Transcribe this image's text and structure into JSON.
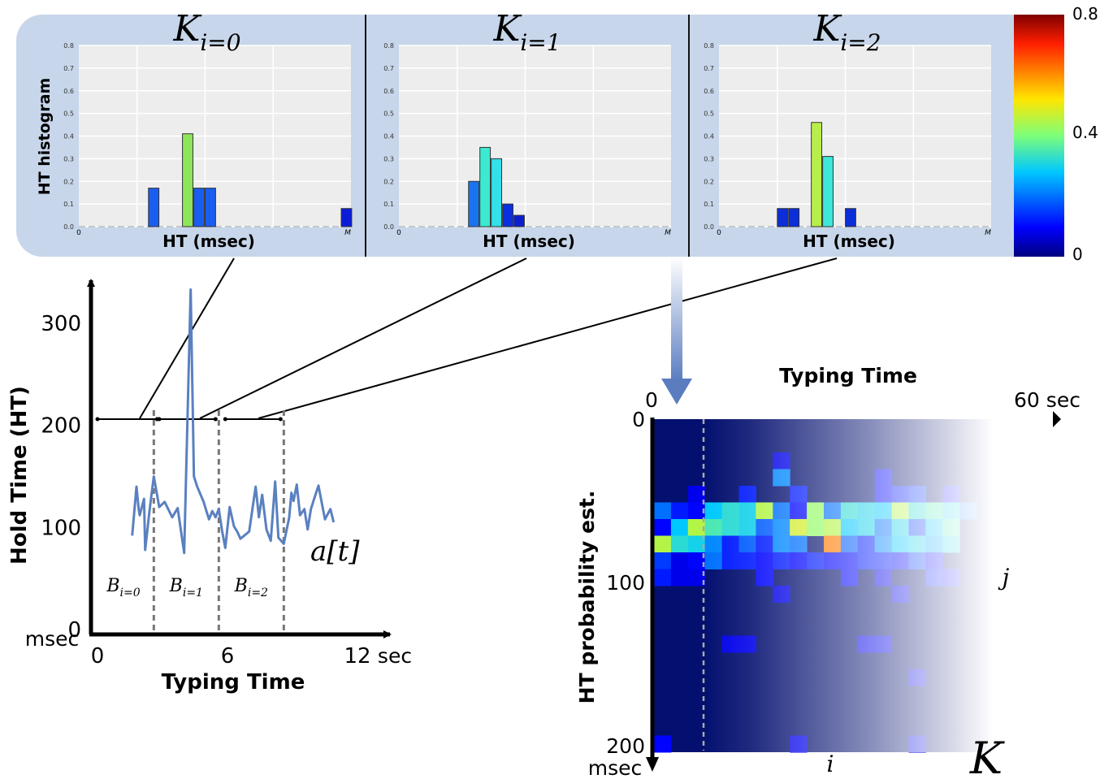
{
  "colors": {
    "panel_bg": "#c7d6ea",
    "plot_bg": "#ededed",
    "series_line": "#5a80c0",
    "heatmap_base": "#04106f",
    "arrow_blue": "#5b7dc0"
  },
  "histogram_panels": {
    "ylabel": "HT histogram",
    "xlabel": "HT (msec)",
    "x_start": "0",
    "x_end": "M",
    "y_ticks": [
      "0.0",
      "0.1",
      "0.2",
      "0.3",
      "0.4",
      "0.5",
      "0.6",
      "0.7",
      "0.8"
    ],
    "titles": [
      {
        "base": "K",
        "sub": "i=0"
      },
      {
        "base": "K",
        "sub": "i=1"
      },
      {
        "base": "K",
        "sub": "i=2"
      }
    ]
  },
  "colorbar": {
    "top_label": "0.8",
    "mid_label": "0.4",
    "bottom_label": "0"
  },
  "timeseries": {
    "ylabel": "Hold Time (HT)",
    "xlabel": "Typing Time",
    "y_unit": "msec",
    "x_unit": "sec",
    "y_ticks": [
      {
        "v": 0,
        "label": "0"
      },
      {
        "v": 100,
        "label": "100"
      },
      {
        "v": 200,
        "label": "200"
      },
      {
        "v": 300,
        "label": "300"
      }
    ],
    "x_ticks": [
      {
        "v": 0,
        "label": "0"
      },
      {
        "v": 6,
        "label": "6"
      },
      {
        "v": 12,
        "label": "12"
      }
    ],
    "signal_label": "a[t]",
    "block_labels": [
      {
        "base": "B",
        "sub": "i=0"
      },
      {
        "base": "B",
        "sub": "i=1"
      },
      {
        "base": "B",
        "sub": "i=2"
      }
    ]
  },
  "heatmap": {
    "top_title": "Typing Time",
    "x_start": "0",
    "x_end": "60 sec",
    "ylabel": "HT probability est.",
    "y_ticks": [
      {
        "v": 0,
        "label": "0"
      },
      {
        "v": 100,
        "label": "100"
      },
      {
        "v": 200,
        "label": "200"
      }
    ],
    "y_unit": "msec",
    "col_index": "i",
    "row_index": "j",
    "matrix_label": "K"
  },
  "chart_data": [
    {
      "type": "bar",
      "title": "K_{i=0}",
      "xlabel": "HT (msec)",
      "ylabel": "HT histogram",
      "ylim": [
        0,
        0.8
      ],
      "bins": 24,
      "bars": [
        {
          "bin": 6,
          "value": 0.17,
          "color": "#1a5ef0"
        },
        {
          "bin": 9,
          "value": 0.41,
          "color": "#8de65a"
        },
        {
          "bin": 10,
          "value": 0.17,
          "color": "#1a5ef0"
        },
        {
          "bin": 11,
          "value": 0.17,
          "color": "#1a5ef0"
        },
        {
          "bin": 23,
          "value": 0.08,
          "color": "#0a1cd8"
        }
      ]
    },
    {
      "type": "bar",
      "title": "K_{i=1}",
      "xlabel": "HT (msec)",
      "ylim": [
        0,
        0.8
      ],
      "bins": 24,
      "bars": [
        {
          "bin": 6,
          "value": 0.2,
          "color": "#1a74ef"
        },
        {
          "bin": 7,
          "value": 0.35,
          "color": "#3bead0"
        },
        {
          "bin": 8,
          "value": 0.3,
          "color": "#33e1ea"
        },
        {
          "bin": 9,
          "value": 0.1,
          "color": "#0b2fdd"
        },
        {
          "bin": 10,
          "value": 0.05,
          "color": "#0b1fcf"
        }
      ]
    },
    {
      "type": "bar",
      "title": "K_{i=2}",
      "xlabel": "HT (msec)",
      "ylim": [
        0,
        0.8
      ],
      "bins": 24,
      "bars": [
        {
          "bin": 5,
          "value": 0.08,
          "color": "#0b2ed8"
        },
        {
          "bin": 6,
          "value": 0.08,
          "color": "#0b2ed8"
        },
        {
          "bin": 8,
          "value": 0.46,
          "color": "#b8ee4a"
        },
        {
          "bin": 9,
          "value": 0.31,
          "color": "#3de8d8"
        },
        {
          "bin": 11,
          "value": 0.08,
          "color": "#0b2ed8"
        }
      ]
    },
    {
      "type": "line",
      "name": "a[t]",
      "xlabel": "Typing Time",
      "ylabel": "Hold Time (HT)",
      "xlim": [
        0,
        12
      ],
      "ylim": [
        0,
        330
      ],
      "x": [
        1.6,
        1.8,
        1.9,
        1.95,
        2.15,
        2.2,
        2.4,
        2.6,
        2.85,
        3.1,
        3.45,
        3.7,
        4.0,
        4.3,
        4.45,
        4.6,
        4.9,
        5.0,
        5.15,
        5.3,
        5.45,
        5.6,
        5.75,
        5.9,
        6.1,
        6.3,
        6.45,
        6.6,
        7.0,
        7.3,
        7.45,
        7.6,
        7.8,
        8.0,
        8.2,
        8.35,
        8.6,
        8.85,
        8.95,
        9.05,
        9.2,
        9.35,
        9.55,
        9.7,
        9.85,
        10.0,
        10.2,
        10.5,
        10.75,
        10.9
      ],
      "y": [
        92,
        140,
        118,
        112,
        128,
        78,
        116,
        150,
        120,
        125,
        110,
        119,
        75,
        333,
        150,
        140,
        125,
        118,
        108,
        116,
        110,
        118,
        97,
        80,
        120,
        101,
        96,
        89,
        96,
        140,
        110,
        132,
        98,
        87,
        145,
        90,
        84,
        110,
        134,
        126,
        142,
        112,
        118,
        98,
        118,
        128,
        141,
        108,
        118,
        105
      ]
    },
    {
      "type": "heatmap",
      "xlabel": "Typing Time",
      "ylabel": "HT probability est.",
      "xlim": [
        0,
        60
      ],
      "ylim_msec": [
        0,
        200
      ],
      "rows": 20,
      "cols": 20,
      "background_value": 0.0,
      "cells": [
        {
          "r": 2,
          "c": 7,
          "v": 0.08
        },
        {
          "r": 3,
          "c": 7,
          "v": 0.22
        },
        {
          "r": 3,
          "c": 13,
          "v": 0.1
        },
        {
          "r": 4,
          "c": 2,
          "v": 0.08
        },
        {
          "r": 4,
          "c": 5,
          "v": 0.12
        },
        {
          "r": 4,
          "c": 8,
          "v": 0.12
        },
        {
          "r": 4,
          "c": 13,
          "v": 0.1
        },
        {
          "r": 4,
          "c": 14,
          "v": 0.12
        },
        {
          "r": 4,
          "c": 15,
          "v": 0.14
        },
        {
          "r": 4,
          "c": 17,
          "v": 0.1
        },
        {
          "r": 5,
          "c": 0,
          "v": 0.2
        },
        {
          "r": 5,
          "c": 1,
          "v": 0.12
        },
        {
          "r": 5,
          "c": 2,
          "v": 0.1
        },
        {
          "r": 5,
          "c": 3,
          "v": 0.28
        },
        {
          "r": 5,
          "c": 4,
          "v": 0.32
        },
        {
          "r": 5,
          "c": 5,
          "v": 0.3
        },
        {
          "r": 5,
          "c": 6,
          "v": 0.45
        },
        {
          "r": 5,
          "c": 7,
          "v": 0.2
        },
        {
          "r": 5,
          "c": 8,
          "v": 0.1
        },
        {
          "r": 5,
          "c": 9,
          "v": 0.42
        },
        {
          "r": 5,
          "c": 10,
          "v": 0.2
        },
        {
          "r": 5,
          "c": 11,
          "v": 0.32
        },
        {
          "r": 5,
          "c": 12,
          "v": 0.3
        },
        {
          "r": 5,
          "c": 13,
          "v": 0.28
        },
        {
          "r": 5,
          "c": 14,
          "v": 0.45
        },
        {
          "r": 5,
          "c": 15,
          "v": 0.32
        },
        {
          "r": 5,
          "c": 16,
          "v": 0.35
        },
        {
          "r": 5,
          "c": 17,
          "v": 0.3
        },
        {
          "r": 5,
          "c": 18,
          "v": 0.2
        },
        {
          "r": 6,
          "c": 0,
          "v": 0.1
        },
        {
          "r": 6,
          "c": 1,
          "v": 0.28
        },
        {
          "r": 6,
          "c": 2,
          "v": 0.45
        },
        {
          "r": 6,
          "c": 3,
          "v": 0.35
        },
        {
          "r": 6,
          "c": 4,
          "v": 0.32
        },
        {
          "r": 6,
          "c": 5,
          "v": 0.3
        },
        {
          "r": 6,
          "c": 6,
          "v": 0.18
        },
        {
          "r": 6,
          "c": 7,
          "v": 0.22
        },
        {
          "r": 6,
          "c": 8,
          "v": 0.48
        },
        {
          "r": 6,
          "c": 9,
          "v": 0.42
        },
        {
          "r": 6,
          "c": 10,
          "v": 0.45
        },
        {
          "r": 6,
          "c": 11,
          "v": 0.28
        },
        {
          "r": 6,
          "c": 12,
          "v": 0.3
        },
        {
          "r": 6,
          "c": 13,
          "v": 0.2
        },
        {
          "r": 6,
          "c": 14,
          "v": 0.3
        },
        {
          "r": 6,
          "c": 15,
          "v": 0.15
        },
        {
          "r": 6,
          "c": 16,
          "v": 0.28
        },
        {
          "r": 6,
          "c": 17,
          "v": 0.35
        },
        {
          "r": 7,
          "c": 0,
          "v": 0.45
        },
        {
          "r": 7,
          "c": 1,
          "v": 0.32
        },
        {
          "r": 7,
          "c": 2,
          "v": 0.3
        },
        {
          "r": 7,
          "c": 3,
          "v": 0.22
        },
        {
          "r": 7,
          "c": 4,
          "v": 0.12
        },
        {
          "r": 7,
          "c": 5,
          "v": 0.18
        },
        {
          "r": 7,
          "c": 6,
          "v": 0.12
        },
        {
          "r": 7,
          "c": 7,
          "v": 0.22
        },
        {
          "r": 7,
          "c": 8,
          "v": 0.2
        },
        {
          "r": 7,
          "c": 10,
          "v": 0.62
        },
        {
          "r": 7,
          "c": 11,
          "v": 0.18
        },
        {
          "r": 7,
          "c": 12,
          "v": 0.12
        },
        {
          "r": 7,
          "c": 13,
          "v": 0.22
        },
        {
          "r": 7,
          "c": 14,
          "v": 0.28
        },
        {
          "r": 7,
          "c": 15,
          "v": 0.3
        },
        {
          "r": 7,
          "c": 16,
          "v": 0.25
        },
        {
          "r": 7,
          "c": 17,
          "v": 0.3
        },
        {
          "r": 8,
          "c": 0,
          "v": 0.15
        },
        {
          "r": 8,
          "c": 1,
          "v": 0.08
        },
        {
          "r": 8,
          "c": 2,
          "v": 0.1
        },
        {
          "r": 8,
          "c": 3,
          "v": 0.2
        },
        {
          "r": 8,
          "c": 4,
          "v": 0.12
        },
        {
          "r": 8,
          "c": 5,
          "v": 0.12
        },
        {
          "r": 8,
          "c": 6,
          "v": 0.1
        },
        {
          "r": 8,
          "c": 7,
          "v": 0.12
        },
        {
          "r": 8,
          "c": 8,
          "v": 0.1
        },
        {
          "r": 8,
          "c": 9,
          "v": 0.12
        },
        {
          "r": 8,
          "c": 10,
          "v": 0.1
        },
        {
          "r": 8,
          "c": 11,
          "v": 0.1
        },
        {
          "r": 8,
          "c": 12,
          "v": 0.12
        },
        {
          "r": 8,
          "c": 13,
          "v": 0.12
        },
        {
          "r": 8,
          "c": 14,
          "v": 0.1
        },
        {
          "r": 8,
          "c": 15,
          "v": 0.15
        },
        {
          "r": 8,
          "c": 16,
          "v": 0.1
        },
        {
          "r": 9,
          "c": 0,
          "v": 0.12
        },
        {
          "r": 9,
          "c": 1,
          "v": 0.08
        },
        {
          "r": 9,
          "c": 2,
          "v": 0.08
        },
        {
          "r": 9,
          "c": 6,
          "v": 0.1
        },
        {
          "r": 9,
          "c": 11,
          "v": 0.1
        },
        {
          "r": 9,
          "c": 13,
          "v": 0.08
        },
        {
          "r": 9,
          "c": 16,
          "v": 0.12
        },
        {
          "r": 9,
          "c": 17,
          "v": 0.1
        },
        {
          "r": 10,
          "c": 7,
          "v": 0.08
        },
        {
          "r": 10,
          "c": 14,
          "v": 0.08
        },
        {
          "r": 13,
          "c": 4,
          "v": 0.08
        },
        {
          "r": 13,
          "c": 5,
          "v": 0.08
        },
        {
          "r": 13,
          "c": 12,
          "v": 0.08
        },
        {
          "r": 13,
          "c": 13,
          "v": 0.08
        },
        {
          "r": 15,
          "c": 15,
          "v": 0.08
        },
        {
          "r": 19,
          "c": 0,
          "v": 0.1
        },
        {
          "r": 19,
          "c": 8,
          "v": 0.08
        },
        {
          "r": 19,
          "c": 15,
          "v": 0.08
        }
      ]
    }
  ]
}
